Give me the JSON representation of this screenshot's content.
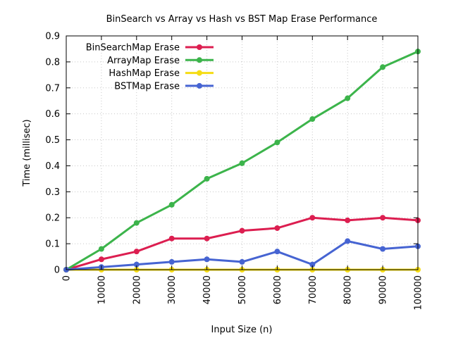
{
  "chart_data": {
    "type": "line",
    "title": "BinSearch vs Array vs Hash vs BST Map Erase Performance",
    "xlabel": "Input Size (n)",
    "ylabel": "Time (millisec)",
    "xlim": [
      0,
      100000
    ],
    "ylim": [
      0,
      0.9
    ],
    "x_ticks": [
      "0",
      "10000",
      "20000",
      "30000",
      "40000",
      "50000",
      "60000",
      "70000",
      "80000",
      "90000",
      "100000"
    ],
    "y_ticks": [
      "0",
      "0.1",
      "0.2",
      "0.3",
      "0.4",
      "0.5",
      "0.6",
      "0.7",
      "0.8",
      "0.9"
    ],
    "grid": true,
    "legend_position": "top-left",
    "x": [
      0,
      10000,
      20000,
      30000,
      40000,
      50000,
      60000,
      70000,
      80000,
      90000,
      100000
    ],
    "series": [
      {
        "name": "BinSearchMap Erase",
        "color": "#dc1e50",
        "values": [
          0,
          0.04,
          0.07,
          0.12,
          0.12,
          0.15,
          0.16,
          0.2,
          0.19,
          0.2,
          0.19
        ]
      },
      {
        "name": "ArrayMap Erase",
        "color": "#3cb44b",
        "values": [
          0,
          0.08,
          0.18,
          0.25,
          0.35,
          0.41,
          0.49,
          0.58,
          0.66,
          0.78,
          0.84
        ]
      },
      {
        "name": "HashMap Erase",
        "color": "#f5dc14",
        "values": [
          0,
          0,
          0,
          0,
          0,
          0,
          0,
          0,
          0,
          0,
          0
        ]
      },
      {
        "name": "BSTMap Erase",
        "color": "#4664d2",
        "values": [
          0,
          0.01,
          0.02,
          0.03,
          0.04,
          0.03,
          0.07,
          0.02,
          0.11,
          0.08,
          0.09
        ]
      }
    ]
  }
}
